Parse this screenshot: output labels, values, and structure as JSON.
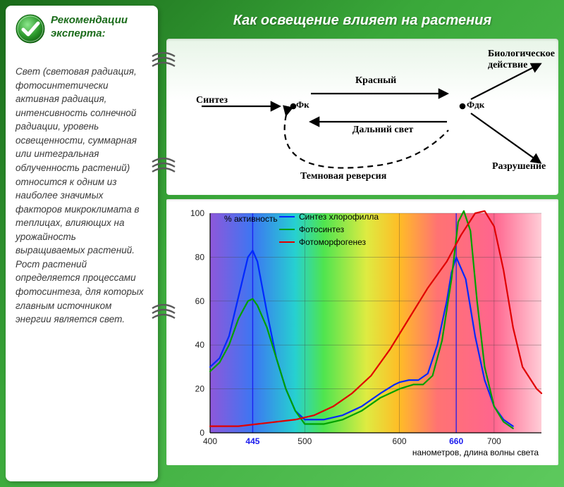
{
  "sidebar": {
    "title": "Рекомендации эксперта:",
    "body": "Свет (световая радиация, фотосинтетически активная радиация, интенсивность солнечной радиации, уровень освещенности, суммарная или интегральная облученность растений) относится к одним из наиболее значимых факторов микроклимата в теплицах, влияющих на урожайность выращиваемых растений. Рост растений определяется процессами фотосинтеза, для которых главным источником энергии является свет.",
    "title_color": "#1a6b1a",
    "body_color": "#3a3a3a",
    "title_fontsize": 15,
    "body_fontsize": 13.5
  },
  "main": {
    "title": "Как освещение влияет на растения",
    "title_color": "#ffffff",
    "title_fontsize": 20
  },
  "diagram": {
    "type": "flowchart",
    "background_gradient": [
      "#e8f5e8",
      "#ffffff"
    ],
    "labels": {
      "sintez": "Синтез",
      "fk": "Фк",
      "fdk": "Фдк",
      "krasnyj": "Красный",
      "dalnij": "Дальний свет",
      "temnovaya": "Темновая реверсия",
      "bio": "Биологическое действие",
      "razrush": "Разрушение"
    },
    "font_family": "Times New Roman",
    "font_size": 14,
    "stroke_color": "#000000",
    "stroke_width": 2.2
  },
  "chart": {
    "type": "line",
    "title_y": "% активность",
    "xlabel": "нанометров, длина волны света",
    "xlim": [
      400,
      750
    ],
    "ylim": [
      0,
      100
    ],
    "yticks": [
      0,
      20,
      40,
      60,
      80,
      100
    ],
    "xticks": [
      400,
      445,
      500,
      600,
      660,
      700
    ],
    "xtick_highlight": [
      445,
      660
    ],
    "xtick_highlight_color": "#1a1aee",
    "tick_color": "#202020",
    "tick_fontsize": 12,
    "grid_color": "#404040",
    "grid_width": 0.6,
    "line_width": 2.2,
    "spectrum_stops": [
      {
        "x": 400,
        "color": "#7a3ad4"
      },
      {
        "x": 445,
        "color": "#1a5ef0"
      },
      {
        "x": 490,
        "color": "#00c8c8"
      },
      {
        "x": 520,
        "color": "#30e030"
      },
      {
        "x": 565,
        "color": "#d8e820"
      },
      {
        "x": 600,
        "color": "#ffb000"
      },
      {
        "x": 640,
        "color": "#ff5a5a"
      },
      {
        "x": 700,
        "color": "#ff4a7a"
      },
      {
        "x": 750,
        "color": "#ffc4d0"
      }
    ],
    "legend": [
      {
        "label": "Синтез хлорофилла",
        "color": "#0028ff"
      },
      {
        "label": "Фотосинтез",
        "color": "#00a000"
      },
      {
        "label": "Фотоморфогенез",
        "color": "#e00000"
      }
    ],
    "series": {
      "blue": {
        "color": "#0028ff",
        "points": [
          [
            400,
            30
          ],
          [
            410,
            34
          ],
          [
            420,
            44
          ],
          [
            430,
            62
          ],
          [
            440,
            80
          ],
          [
            445,
            83
          ],
          [
            450,
            78
          ],
          [
            460,
            55
          ],
          [
            470,
            34
          ],
          [
            480,
            20
          ],
          [
            490,
            10
          ],
          [
            500,
            6
          ],
          [
            520,
            6
          ],
          [
            540,
            8
          ],
          [
            560,
            12
          ],
          [
            580,
            18
          ],
          [
            595,
            22
          ],
          [
            600,
            23
          ],
          [
            610,
            24
          ],
          [
            620,
            24
          ],
          [
            630,
            27
          ],
          [
            640,
            40
          ],
          [
            650,
            60
          ],
          [
            655,
            73
          ],
          [
            660,
            80
          ],
          [
            670,
            70
          ],
          [
            680,
            44
          ],
          [
            690,
            24
          ],
          [
            700,
            12
          ],
          [
            710,
            6
          ],
          [
            720,
            3
          ]
        ]
      },
      "green": {
        "color": "#00a000",
        "points": [
          [
            400,
            28
          ],
          [
            410,
            32
          ],
          [
            420,
            40
          ],
          [
            430,
            52
          ],
          [
            440,
            60
          ],
          [
            445,
            61
          ],
          [
            450,
            58
          ],
          [
            460,
            48
          ],
          [
            470,
            34
          ],
          [
            480,
            20
          ],
          [
            490,
            10
          ],
          [
            500,
            4
          ],
          [
            520,
            4
          ],
          [
            540,
            6
          ],
          [
            560,
            10
          ],
          [
            580,
            16
          ],
          [
            600,
            20
          ],
          [
            615,
            22
          ],
          [
            625,
            22
          ],
          [
            635,
            26
          ],
          [
            645,
            42
          ],
          [
            655,
            70
          ],
          [
            662,
            96
          ],
          [
            668,
            101
          ],
          [
            675,
            92
          ],
          [
            682,
            60
          ],
          [
            690,
            30
          ],
          [
            700,
            12
          ],
          [
            710,
            5
          ],
          [
            720,
            2
          ]
        ]
      },
      "red": {
        "color": "#e00000",
        "points": [
          [
            400,
            3
          ],
          [
            430,
            3
          ],
          [
            450,
            4
          ],
          [
            470,
            5
          ],
          [
            490,
            6
          ],
          [
            510,
            8
          ],
          [
            530,
            12
          ],
          [
            550,
            18
          ],
          [
            570,
            26
          ],
          [
            590,
            38
          ],
          [
            610,
            52
          ],
          [
            630,
            66
          ],
          [
            650,
            78
          ],
          [
            665,
            90
          ],
          [
            680,
            100
          ],
          [
            690,
            101
          ],
          [
            700,
            94
          ],
          [
            710,
            74
          ],
          [
            720,
            48
          ],
          [
            730,
            30
          ],
          [
            745,
            20
          ],
          [
            750,
            18
          ]
        ]
      }
    }
  },
  "colors": {
    "page_bg_start": "#1a6b1a",
    "page_bg_end": "#5dc95d",
    "panel_bg": "#ffffff",
    "spiral": "#5a5a5a",
    "spiral_shadow": "#b8b8b8",
    "check_ring": "#3aa83a",
    "check_mark": "#ffffff"
  }
}
